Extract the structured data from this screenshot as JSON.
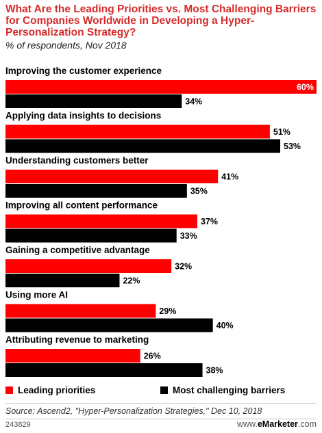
{
  "title": "What Are the Leading Priorities vs. Most Challenging Barriers for Companies Worldwide in Developing a Hyper-Personalization Strategy?",
  "subtitle": "% of respondents, Nov 2018",
  "colors": {
    "leading": "#ff0000",
    "barriers": "#000000",
    "title": "#d62b2b"
  },
  "chart_data": {
    "type": "bar",
    "orientation": "horizontal",
    "categories": [
      "Improving the customer experience",
      "Applying data insights to decisions",
      "Understanding customers better",
      "Improving all content performance",
      "Gaining a competitive advantage",
      "Using more AI",
      "Attributing revenue to marketing"
    ],
    "series": [
      {
        "name": "Leading priorities",
        "values": [
          60,
          51,
          41,
          37,
          32,
          29,
          26
        ],
        "labels": [
          "60%",
          "51%",
          "41%",
          "37%",
          "32%",
          "29%",
          "26%"
        ]
      },
      {
        "name": "Most challenging barriers",
        "values": [
          34,
          53,
          35,
          33,
          22,
          40,
          38
        ],
        "labels": [
          "34%",
          "53%",
          "35%",
          "33%",
          "22%",
          "40%",
          "38%"
        ]
      }
    ],
    "xlim": [
      0,
      60
    ],
    "grid": false,
    "legend_position": "bottom"
  },
  "source": "Source: Ascend2, \"Hyper-Personalization Strategies,\" Dec 10, 2018",
  "footer": {
    "chart_id": "243829",
    "brand_prefix": "www.",
    "brand_name": "eMarketer",
    "brand_suffix": ".com"
  }
}
